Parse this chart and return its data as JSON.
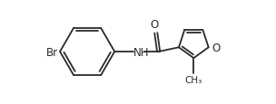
{
  "bg_color": "#ffffff",
  "line_color": "#2a2a2a",
  "text_color": "#2a2a2a",
  "figsize": [
    3.04,
    1.16
  ],
  "dpi": 100,
  "xlim": [
    0,
    10.5
  ],
  "ylim": [
    0.8,
    4.8
  ]
}
